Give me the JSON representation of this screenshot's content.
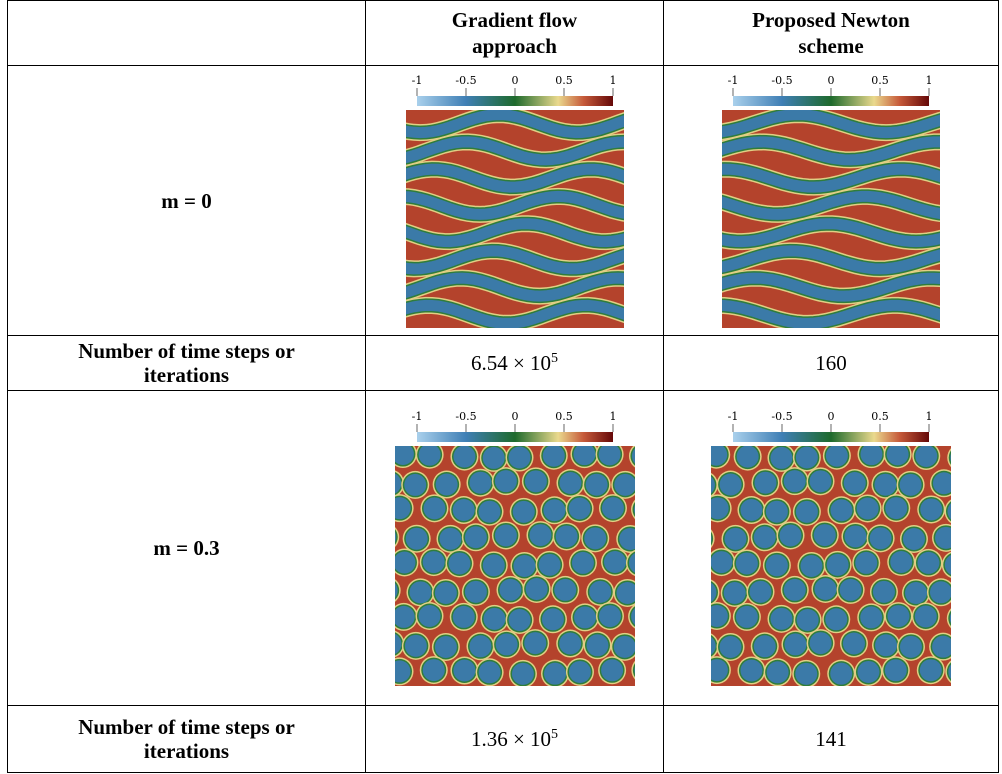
{
  "table": {
    "header": [
      "Gradient flow approach",
      "Proposed Newton scheme"
    ],
    "colorbar_ticks": [
      "-1",
      "-0.5",
      "0",
      "0.5",
      "1"
    ],
    "rows": [
      {
        "label": "m = 0"
      },
      {
        "label": "Number of time steps or iterations",
        "cells": [
          {
            "text": "6.54 × 10",
            "sup": "5"
          },
          {
            "text": "160"
          }
        ]
      },
      {
        "label": "m = 0.3"
      },
      {
        "label": "Number of time steps or iterations",
        "cells": [
          {
            "text": "1.36 × 10",
            "sup": "5"
          },
          {
            "text": "141"
          }
        ]
      }
    ]
  }
}
